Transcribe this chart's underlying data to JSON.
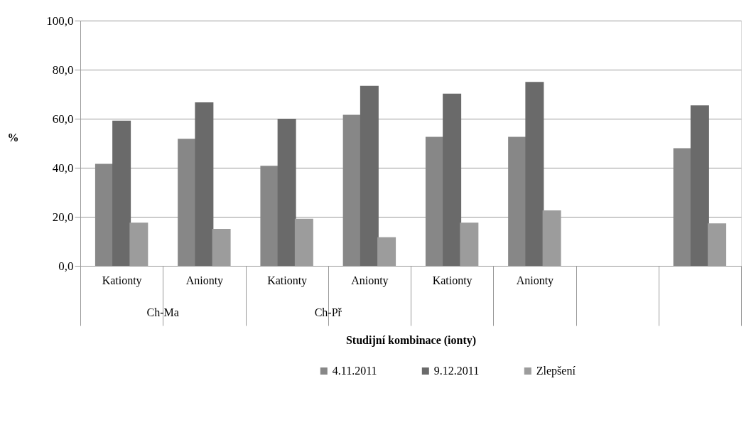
{
  "chart_data": {
    "type": "bar",
    "xlabel": "Studijní kombinace (ionty)",
    "ylabel": "%",
    "categories": [
      "Kationty",
      "Anionty",
      "Kationty",
      "Anionty",
      "Kationty",
      "Anionty",
      null,
      null
    ],
    "series": [
      {
        "name": "4.11.2011",
        "color": "#878787",
        "values": [
          41.6,
          51.8,
          40.8,
          61.6,
          52.6,
          52.6,
          null,
          48.0
        ]
      },
      {
        "name": "9.12.2011",
        "color": "#6a6a6a",
        "values": [
          59.2,
          66.7,
          60.0,
          73.4,
          70.2,
          75.0,
          null,
          65.4
        ]
      },
      {
        "name": "Zlepšení",
        "color": "#9c9c9c",
        "values": [
          17.6,
          15.1,
          19.2,
          11.7,
          17.6,
          22.6,
          null,
          17.3
        ]
      }
    ],
    "annotations": [
      "Ch-Ma",
      "Ch-Př",
      null,
      null
    ],
    "ylim": [
      0,
      100
    ],
    "yticks": [
      {
        "value": 0,
        "label": "0,0"
      },
      {
        "value": 20,
        "label": "20,0"
      },
      {
        "value": 40,
        "label": "40,0"
      },
      {
        "value": 60,
        "label": "60,0"
      },
      {
        "value": 80,
        "label": "80,0"
      },
      {
        "value": 100,
        "label": "100,0"
      }
    ],
    "grid": "y",
    "legend": "bottom"
  }
}
